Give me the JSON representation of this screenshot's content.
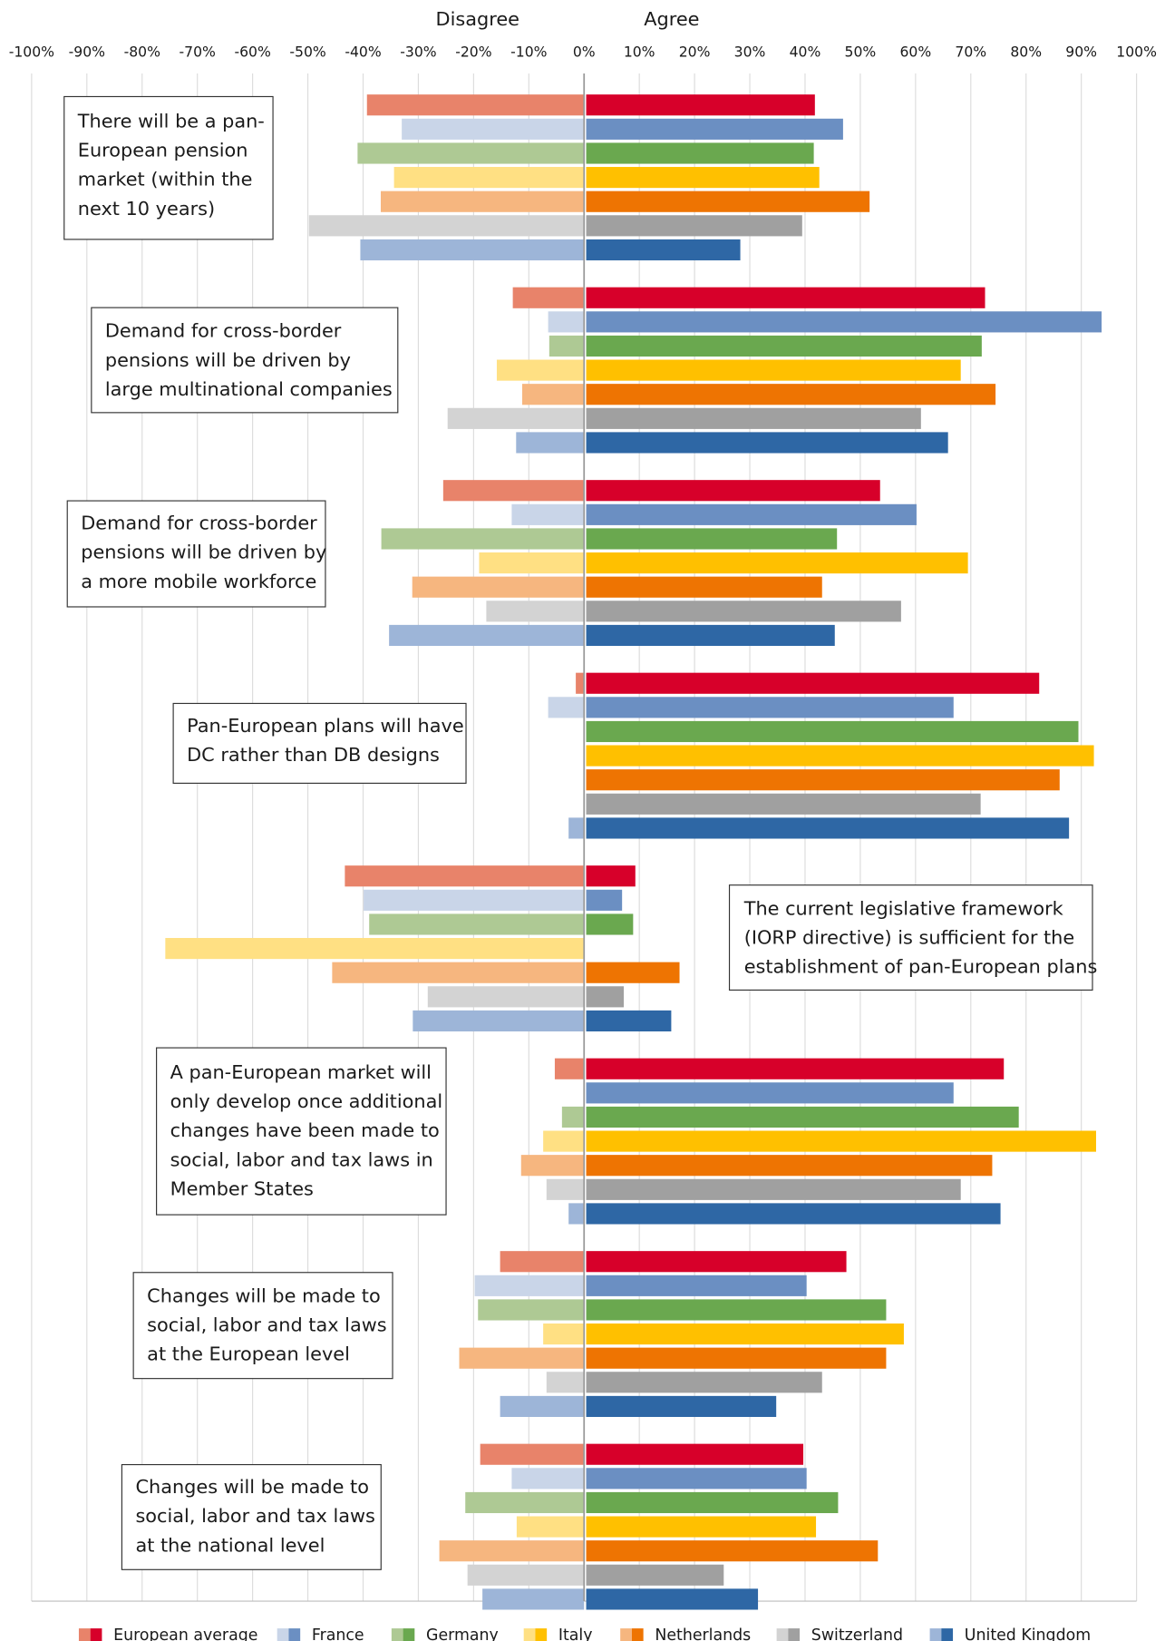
{
  "chart_data": {
    "type": "diverging_bar",
    "axis_labels": [
      "Disagree",
      "Agree"
    ],
    "xlim": [
      -100,
      100
    ],
    "xticks": [
      {
        "value": -100,
        "label": "-100%"
      },
      {
        "value": -90,
        "label": "-90%"
      },
      {
        "value": -80,
        "label": "-80%"
      },
      {
        "value": -70,
        "label": "-70%"
      },
      {
        "value": -60,
        "label": "-60%"
      },
      {
        "value": -50,
        "label": "-50%"
      },
      {
        "value": -40,
        "label": "-40%"
      },
      {
        "value": -30,
        "label": "-30%"
      },
      {
        "value": -20,
        "label": "-20%"
      },
      {
        "value": -10,
        "label": "-10%"
      },
      {
        "value": 0,
        "label": "0%"
      },
      {
        "value": 10,
        "label": "10%"
      },
      {
        "value": 20,
        "label": "20%"
      },
      {
        "value": 30,
        "label": "30%"
      },
      {
        "value": 40,
        "label": "40%"
      },
      {
        "value": 50,
        "label": "50%"
      },
      {
        "value": 60,
        "label": "60%"
      },
      {
        "value": 70,
        "label": "70%"
      },
      {
        "value": 80,
        "label": "80%"
      },
      {
        "value": 90,
        "label": "90%"
      },
      {
        "value": 100,
        "label": "100%"
      }
    ],
    "grid": true,
    "categories": [
      [
        "There will be a pan-",
        "European pension",
        "market (within the",
        "next 10 years)"
      ],
      [
        "Demand for cross-border",
        "pensions will be driven by",
        "large multinational companies"
      ],
      [
        "Demand for cross-border",
        "pensions will be driven by",
        "a more mobile workforce"
      ],
      [
        "Pan-European plans will have",
        "DC rather than DB designs"
      ],
      [
        "The current legislative framework",
        "(IORP directive) is sufficient for the",
        "establishment of pan-European plans"
      ],
      [
        "A pan-European market will",
        "only develop once additional",
        "changes have been made to",
        "social, labor and tax laws in",
        "Member States"
      ],
      [
        "Changes will be made to",
        "social, labor and tax laws",
        "at the European level"
      ],
      [
        "Changes will be made to",
        "social, labor and tax laws",
        "at the national level"
      ]
    ],
    "series": [
      {
        "name": "European average",
        "color": "#d7002a",
        "disagree_color": "#e8836a",
        "disagree": [
          -39.3,
          -12.9,
          -25.5,
          -1.5,
          -43.3,
          -5.3,
          -15.2,
          -18.8
        ],
        "values": [
          41.4,
          72.2,
          53.2,
          82,
          8.9,
          75.6,
          47.1,
          39.3
        ]
      },
      {
        "name": "France",
        "color": "#6b8fc2",
        "disagree_color": "#c9d5e8",
        "disagree": [
          -33,
          -6.5,
          -13.1,
          -6.5,
          -39.9,
          0,
          -19.8,
          -13.1
        ],
        "values": [
          46.5,
          93.3,
          59.8,
          66.5,
          6.5,
          66.5,
          39.9,
          39.9
        ]
      },
      {
        "name": "Germany",
        "color": "#6aa84f",
        "disagree_color": "#aec994",
        "disagree": [
          -41,
          -6.3,
          -36.7,
          0,
          -38.9,
          -4,
          -19.2,
          -21.5
        ],
        "values": [
          41.2,
          71.6,
          45.4,
          89.1,
          8.5,
          78.3,
          54.3,
          45.6
        ]
      },
      {
        "name": "Italy",
        "color": "#ffc000",
        "disagree_color": "#ffe083",
        "disagree": [
          -34.4,
          -15.8,
          -19,
          0,
          -75.8,
          -7.4,
          -7.4,
          -12.2
        ],
        "values": [
          42.2,
          67.8,
          69.1,
          91.9,
          0,
          92.3,
          57.5,
          41.6
        ]
      },
      {
        "name": "Netherlands",
        "color": "#ee7402",
        "disagree_color": "#f6b67f",
        "disagree": [
          -36.8,
          -11.2,
          -31.1,
          0,
          -45.6,
          -11.4,
          -22.6,
          -26.2
        ],
        "values": [
          51.3,
          74.1,
          42.7,
          85.7,
          16.9,
          73.5,
          54.3,
          52.8
        ]
      },
      {
        "name": "Switzerland",
        "color": "#a0a0a0",
        "disagree_color": "#d3d3d3",
        "disagree": [
          -49.8,
          -24.7,
          -17.7,
          0,
          -28.3,
          -6.8,
          -6.8,
          -21.1
        ],
        "values": [
          39.1,
          60.6,
          57,
          71.4,
          6.8,
          67.8,
          42.7,
          24.9
        ]
      },
      {
        "name": "United Kingdom",
        "color": "#2e67a5",
        "disagree_color": "#9db5d8",
        "disagree": [
          -40.5,
          -12.3,
          -35.3,
          -2.8,
          -31,
          -2.8,
          -15.2,
          -18.4
        ],
        "values": [
          27.9,
          65.5,
          45,
          87.4,
          15.4,
          75,
          34.4,
          31.1
        ]
      }
    ]
  }
}
